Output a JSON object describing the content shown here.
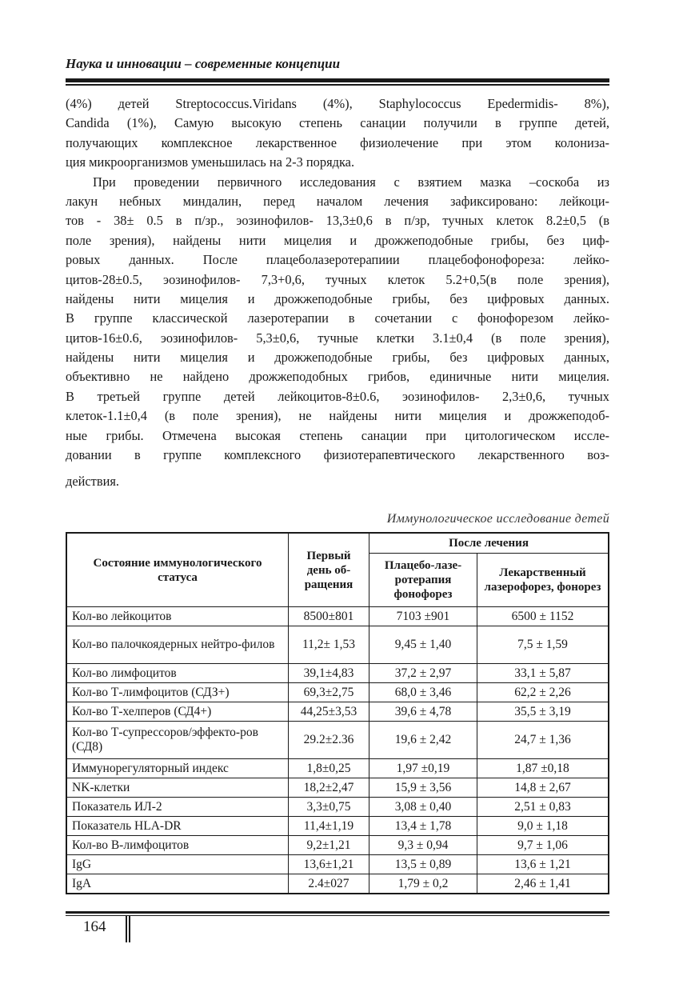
{
  "header": {
    "running_title": "Наука и инновации – современные концепции"
  },
  "body": {
    "lines": [
      "(4%) детей Streptococcus.Viridans (4%), Staphylococcus Epedermidis- 8%),",
      "Candida (1%), Самую высокую степень санации получили в группе детей,",
      "получающих комплексное лекарственное физиолечение при этом колониза-",
      "ция микроорганизмов уменьшилась на 2-3 порядка.",
      "При проведении первичного исследования с взятием мазка –соскоба из",
      "лакун небных миндалин, перед началом лечения зафиксировано: лейкоци-",
      "тов - 38± 0.5 в п/зр., эозинофилов- 13,3±0,6 в п/зр, тучных клеток 8.2±0,5 (в",
      "поле зрения), найдены нити мицелия и дрожжеподобные грибы, без циф-",
      "ровых данных. После плацеболазеротерапиии плацебофонофореза: лейко-",
      "цитов-28±0.5, эозинофилов- 7,3+0,6, тучных клеток 5.2+0,5(в поле зрения),",
      "найдены нити мицелия и дрожжеподобные грибы, без цифровых данных.",
      "В группе классической лазеротерапии в сочетании с фонофорезом  лейко-",
      "цитов-16±0.6, эозинофилов- 5,3±0,6, тучные клетки 3.1±0,4 (в поле зрения),",
      "найдены нити мицелия и дрожжеподобные грибы, без цифровых данных,",
      "объективно не найдено дрожжеподобных грибов, единичные нити мицелия.",
      "В третьей группе детей    лейкоцитов-8±0.6, эозинофилов- 2,3±0,6, тучных",
      "клеток-1.1±0,4 (в поле зрения), не найдены нити мицелия и дрожжеподоб-",
      "ные грибы. Отмечена высокая степень санации при цитологическом иссле-",
      "довании в группе комплексного физиотерапевтического лекарственного воз-",
      "действия."
    ]
  },
  "table": {
    "caption": "Иммунологическое исследование детей",
    "headers": {
      "status": "Состояние иммунологического статуса",
      "first_day": "Первый день об-ращения",
      "after": "После лечения",
      "placebo": "Плацебо-лазе-ротерапия фонофорез",
      "drug": "Лекарственный лазерофорез, фонорез"
    },
    "rows": [
      [
        "Кол-во лейкоцитов",
        "8500±801",
        "7103 ±901",
        "6500 ± 1152"
      ],
      [
        "Кол-во палочкоядерных нейтро-филов",
        "11,2± 1,53",
        "9,45 ± 1,40",
        "7,5 ± 1,59"
      ],
      [
        "Кол-во лимфоцитов",
        "39,1±4,83",
        "37,2 ± 2,97",
        "33,1 ± 5,87"
      ],
      [
        "Кол-во Т-лимфоцитов (СДЗ+)",
        "69,3±2,75",
        "68,0 ± 3,46",
        "62,2 ± 2,26"
      ],
      [
        "Кол-во Т-хелперов (СД4+)",
        "44,25±3,53",
        "39,6 ± 4,78",
        "35,5 ± 3,19"
      ],
      [
        "Кол-во Т-супрессоров/эффекто-ров (СД8)",
        "29.2±2.36",
        "19,6 ± 2,42",
        "24,7 ± 1,36"
      ],
      [
        "Иммунорегуляторный индекс",
        "1,8±0,25",
        "1,97 ±0,19",
        "1,87 ±0,18"
      ],
      [
        "NK-клетки",
        "18,2±2,47",
        "15,9 ± 3,56",
        "14,8 ± 2,67"
      ],
      [
        "Показатель ИЛ-2",
        "3,3±0,75",
        "3,08 ± 0,40",
        "2,51 ± 0,83"
      ],
      [
        "Показатель HLA-DR",
        "11,4±1,19",
        "13,4 ± 1,78",
        "9,0 ± 1,18"
      ],
      [
        "Кол-во В-лимфоцитов",
        "9,2±1,21",
        "9,3 ± 0,94",
        "9,7 ± 1,06"
      ],
      [
        "IgG",
        "13,6±1,21",
        "13,5 ± 0,89",
        "13,6 ± 1,21"
      ],
      [
        "IgA",
        "2.4±027",
        "1,79 ± 0,2",
        "2,46 ± 1,41"
      ]
    ]
  },
  "footer": {
    "page_number": "164"
  }
}
